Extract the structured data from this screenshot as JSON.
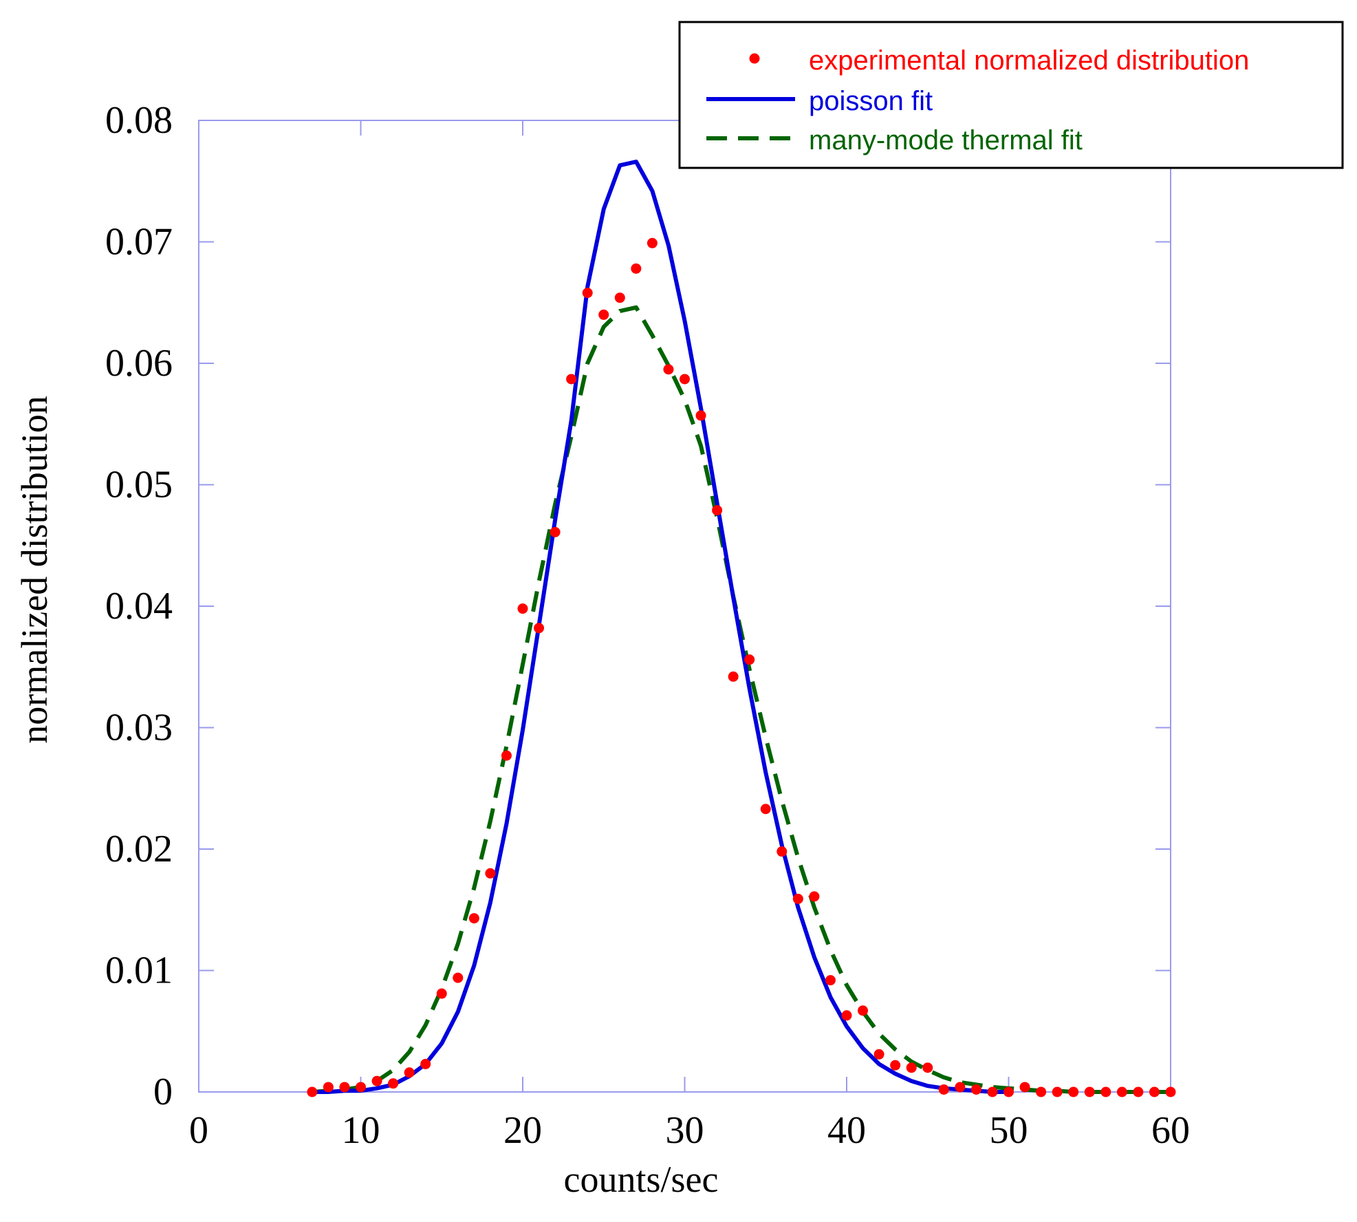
{
  "chart_data": {
    "type": "line",
    "title": "",
    "xlabel": "counts/sec",
    "ylabel": "normalized distribution",
    "xlim": [
      0,
      60
    ],
    "ylim": [
      0,
      0.08
    ],
    "xticks": [
      0,
      10,
      20,
      30,
      40,
      50,
      60
    ],
    "xtick_labels": [
      "0",
      "10",
      "20",
      "30",
      "40",
      "50",
      "60"
    ],
    "yticks": [
      0,
      0.01,
      0.02,
      0.03,
      0.04,
      0.05,
      0.06,
      0.07,
      0.08
    ],
    "ytick_labels": [
      "0",
      "0.01",
      "0.02",
      "0.03",
      "0.04",
      "0.05",
      "0.06",
      "0.07",
      "0.08"
    ],
    "grid": false,
    "legend_position": "top-right",
    "series": [
      {
        "name": "experimental normalized distribution",
        "style": "dots",
        "color": "#ff0000",
        "x": [
          7,
          8,
          9,
          10,
          11,
          12,
          13,
          14,
          15,
          16,
          17,
          18,
          19,
          20,
          21,
          22,
          23,
          24,
          25,
          26,
          27,
          28,
          29,
          30,
          31,
          32,
          33,
          34,
          35,
          36,
          37,
          38,
          39,
          40,
          41,
          42,
          43,
          44,
          45,
          46,
          47,
          48,
          49,
          50,
          51,
          52,
          53,
          54,
          55,
          56,
          57,
          58,
          59,
          60
        ],
        "y": [
          0.0,
          0.0004,
          0.0004,
          0.0004,
          0.0009,
          0.0007,
          0.0016,
          0.0023,
          0.0081,
          0.0094,
          0.0143,
          0.018,
          0.0277,
          0.0398,
          0.0382,
          0.0461,
          0.0587,
          0.0658,
          0.064,
          0.0654,
          0.0678,
          0.0699,
          0.0595,
          0.0587,
          0.0557,
          0.0479,
          0.0342,
          0.0356,
          0.0233,
          0.0198,
          0.0159,
          0.0161,
          0.0092,
          0.0063,
          0.0067,
          0.0031,
          0.0022,
          0.002,
          0.002,
          0.0002,
          0.0004,
          0.0002,
          0.0,
          0.0,
          0.0004,
          0.0,
          0.0,
          0.0,
          0.0,
          0.0,
          0.0,
          0.0,
          0.0,
          0.0
        ]
      },
      {
        "name": "poisson fit",
        "style": "solid",
        "color": "#0000dd",
        "x": [
          7,
          8,
          9,
          10,
          11,
          12,
          13,
          14,
          15,
          16,
          17,
          18,
          19,
          20,
          21,
          22,
          23,
          24,
          25,
          26,
          27,
          28,
          29,
          30,
          31,
          32,
          33,
          34,
          35,
          36,
          37,
          38,
          39,
          40,
          41,
          42,
          43,
          44,
          45,
          46,
          47,
          48,
          49,
          50
        ],
        "y": [
          0.0,
          0.0,
          0.0001,
          0.0001,
          0.0003,
          0.0006,
          0.0013,
          0.0023,
          0.004,
          0.0066,
          0.0104,
          0.0156,
          0.0221,
          0.0298,
          0.0384,
          0.0471,
          0.0553,
          0.0663,
          0.0727,
          0.0763,
          0.0766,
          0.0742,
          0.0697,
          0.0635,
          0.0563,
          0.0485,
          0.0407,
          0.0332,
          0.0263,
          0.0203,
          0.0152,
          0.0111,
          0.0078,
          0.0054,
          0.0036,
          0.0023,
          0.0015,
          0.0009,
          0.0005,
          0.0003,
          0.0002,
          0.0001,
          0.0,
          0.0
        ]
      },
      {
        "name": "many-mode thermal fit",
        "style": "dashed",
        "color": "#006400",
        "x": [
          7,
          8,
          9,
          10,
          11,
          12,
          13,
          14,
          15,
          16,
          17,
          18,
          19,
          20,
          21,
          22,
          23,
          24,
          25,
          26,
          27,
          28,
          29,
          30,
          31,
          32,
          33,
          34,
          35,
          36,
          37,
          38,
          39,
          40,
          41,
          42,
          43,
          44,
          45,
          46,
          47,
          48,
          49,
          50,
          51,
          52,
          53,
          54,
          55,
          56,
          57,
          58,
          59,
          60
        ],
        "y": [
          0.0,
          0.0001,
          0.0002,
          0.0004,
          0.0009,
          0.0018,
          0.0033,
          0.0055,
          0.0085,
          0.0122,
          0.0168,
          0.0223,
          0.0285,
          0.0352,
          0.042,
          0.0484,
          0.054,
          0.06,
          0.063,
          0.0643,
          0.0646,
          0.0623,
          0.0598,
          0.057,
          0.0532,
          0.0473,
          0.0408,
          0.0348,
          0.0292,
          0.024,
          0.0193,
          0.0152,
          0.0117,
          0.0088,
          0.0066,
          0.0048,
          0.0035,
          0.0025,
          0.0018,
          0.0012,
          0.0008,
          0.0006,
          0.0004,
          0.0003,
          0.0002,
          0.0001,
          0.0001,
          0.0,
          0.0,
          0.0,
          0.0,
          0.0,
          0.0,
          0.0
        ]
      }
    ]
  }
}
